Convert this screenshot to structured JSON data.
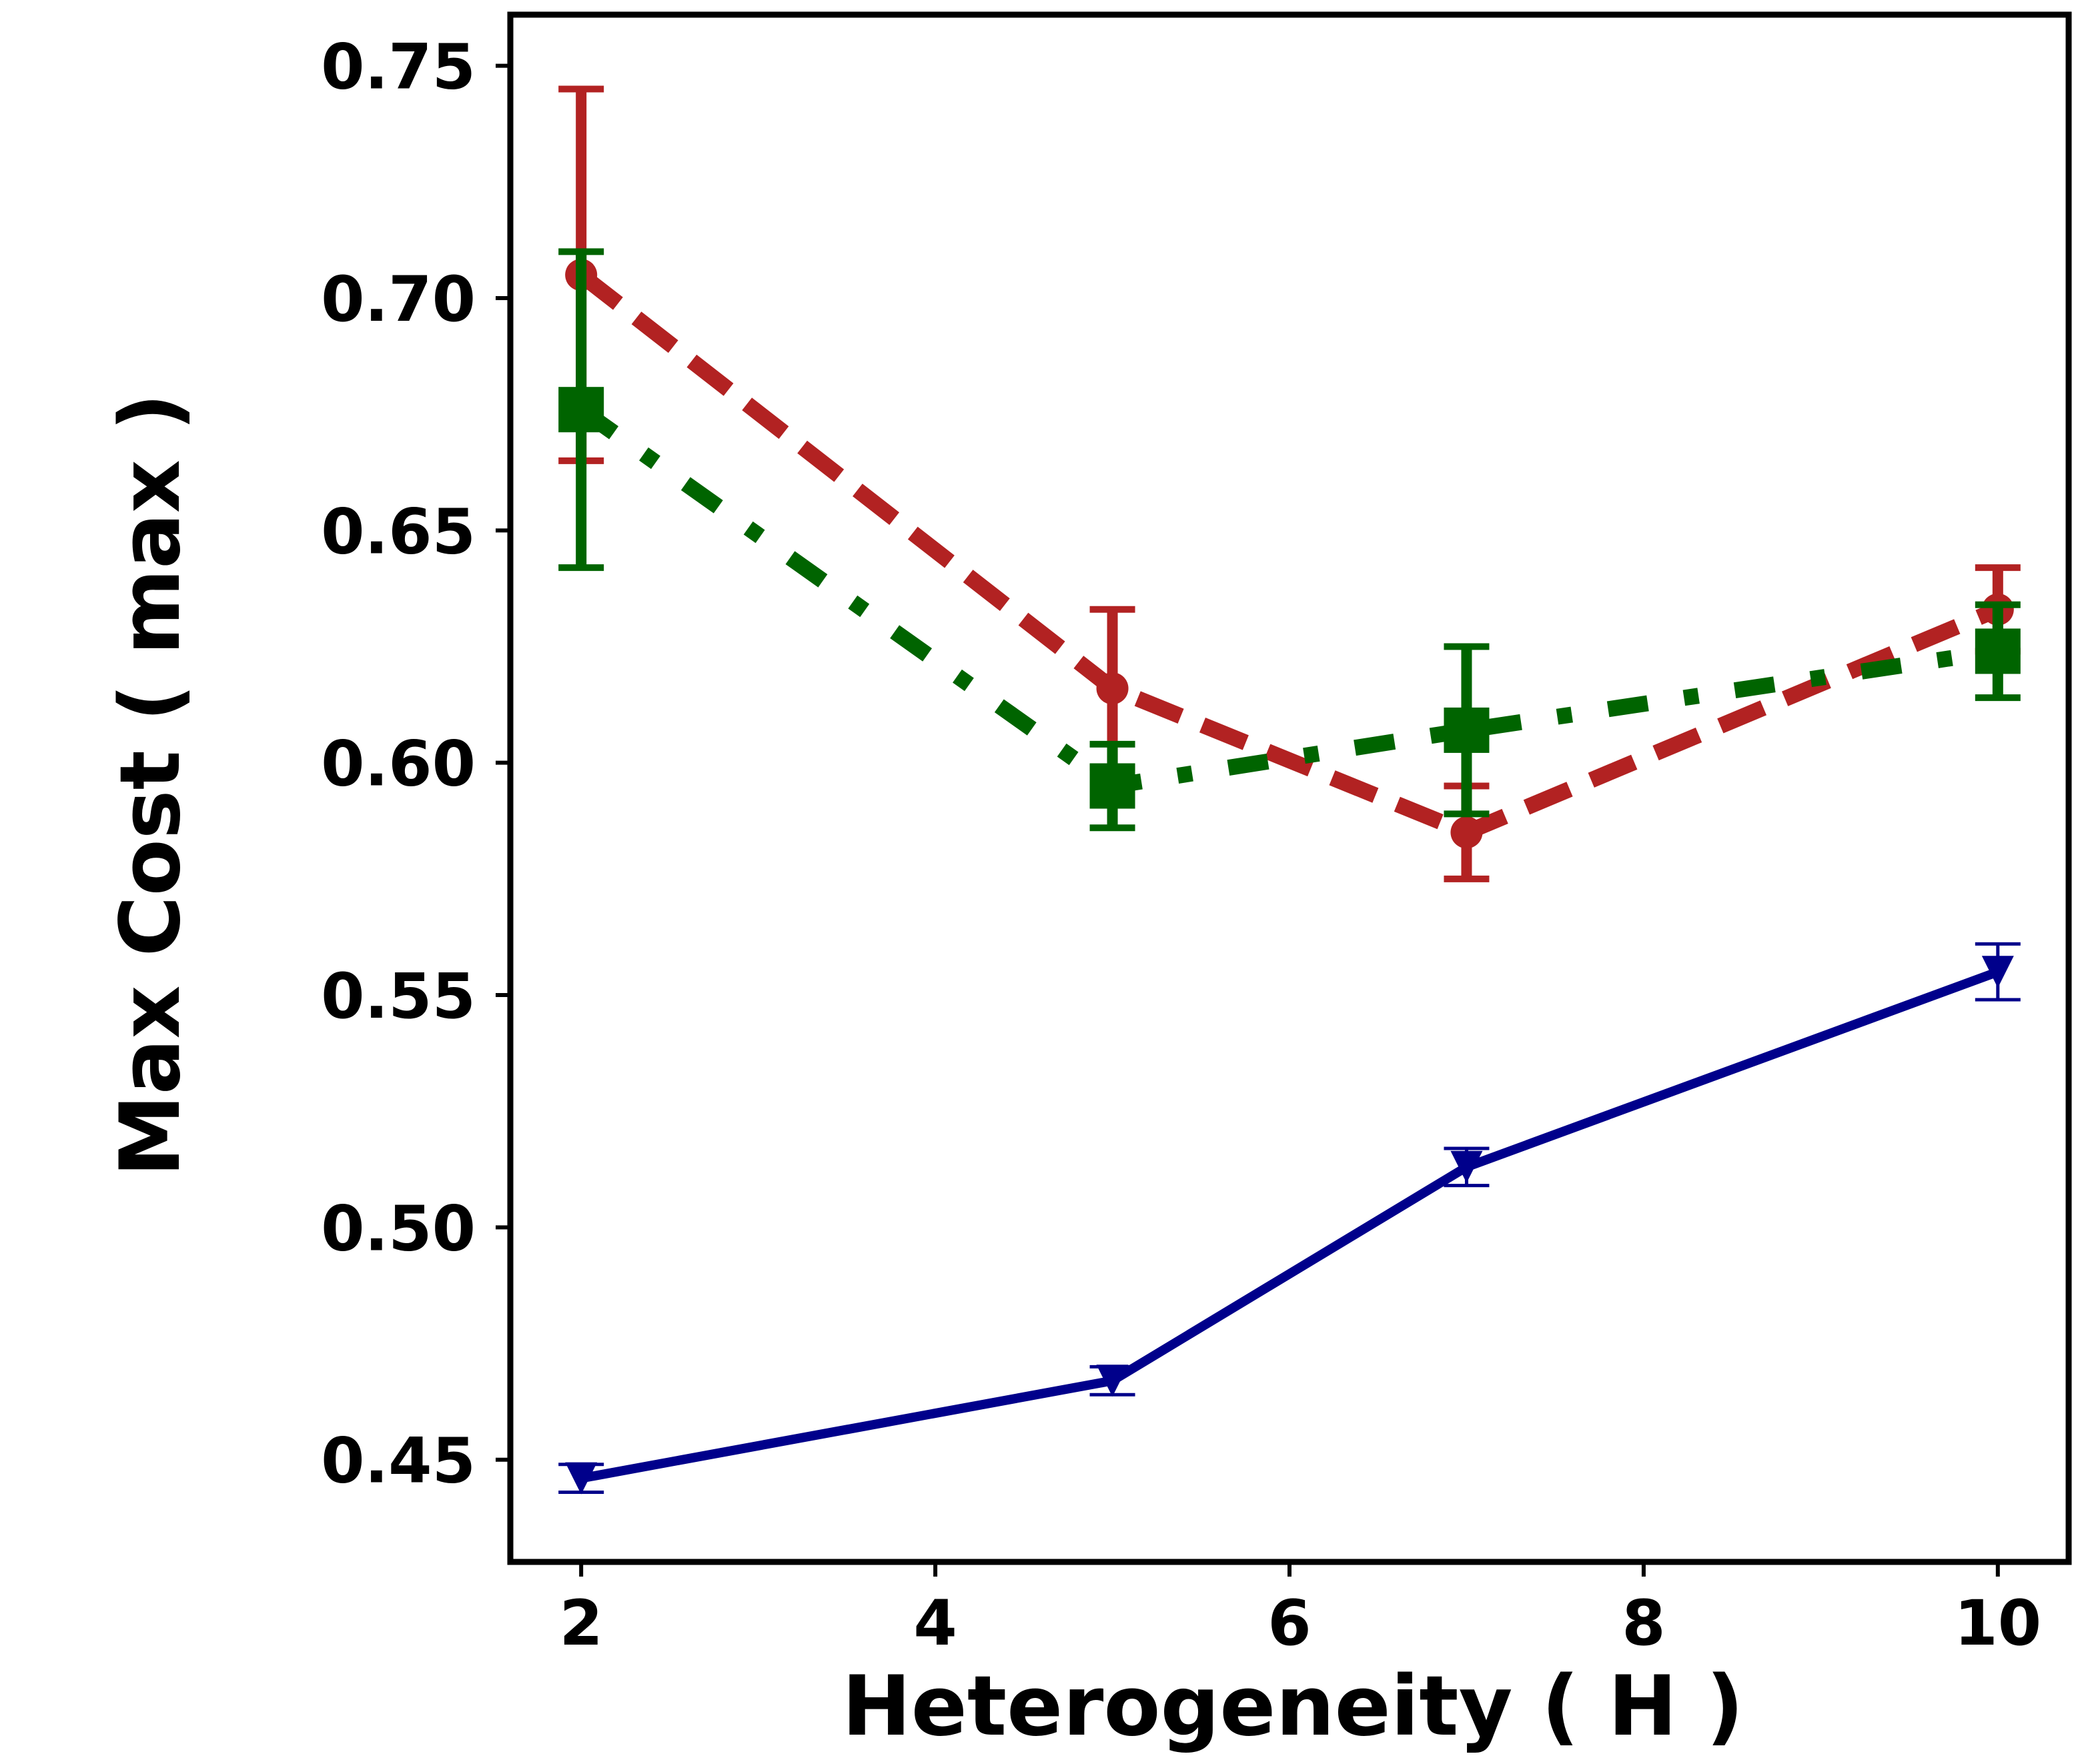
{
  "chart_data": {
    "type": "line",
    "title": "",
    "xlabel": "Heterogeneity ( H )",
    "ylabel": "Max Cost ( max  )",
    "x": [
      2,
      5,
      7,
      10
    ],
    "xlim": [
      1.6,
      10.4
    ],
    "ylim": [
      0.428,
      0.761
    ],
    "xticks": [
      2,
      4,
      6,
      8,
      10
    ],
    "yticks": [
      0.45,
      0.5,
      0.55,
      0.6,
      0.65,
      0.7,
      0.75
    ],
    "xtick_labels": [
      "2",
      "4",
      "6",
      "8",
      "10"
    ],
    "ytick_labels": [
      "0.45",
      "0.50",
      "0.55",
      "0.60",
      "0.65",
      "0.70",
      "0.75"
    ],
    "grid": false,
    "legend": "none",
    "series": [
      {
        "name": "series-red-dashed",
        "color": "#b22222",
        "line_style": "dashed",
        "marker": "circle",
        "values": [
          0.705,
          0.616,
          0.585,
          0.633
        ],
        "errors": [
          0.04,
          0.017,
          0.01,
          0.009
        ]
      },
      {
        "name": "series-green-dashdot",
        "color": "#006400",
        "line_style": "dashdot",
        "marker": "square",
        "values": [
          0.676,
          0.595,
          0.607,
          0.624
        ],
        "errors": [
          0.034,
          0.009,
          0.018,
          0.01
        ]
      },
      {
        "name": "series-blue-solid",
        "color": "#00008b",
        "line_style": "solid",
        "marker": "triangle-down",
        "values": [
          0.446,
          0.467,
          0.513,
          0.555
        ],
        "errors": [
          0.003,
          0.003,
          0.004,
          0.006
        ]
      }
    ]
  }
}
